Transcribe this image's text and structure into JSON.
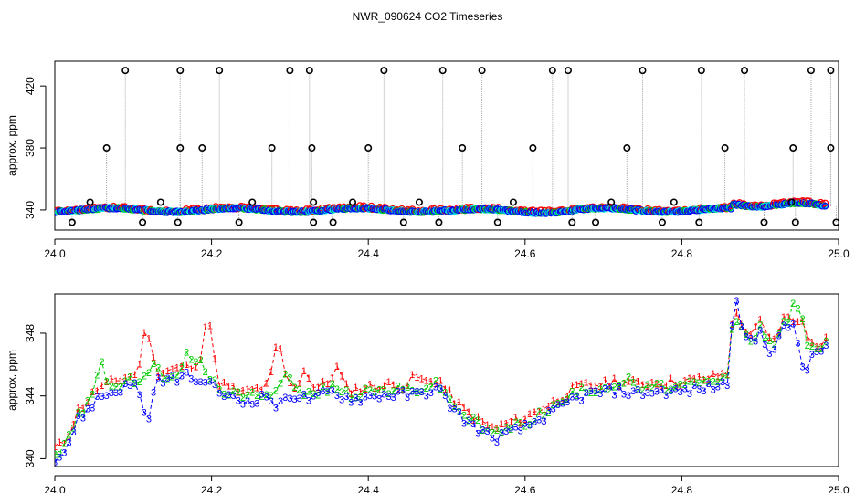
{
  "title": "NWR_090624  CO2 Timeseries",
  "colors": {
    "ch1": "#ff0000",
    "ch2": "#00cc00",
    "ch3": "#0000ff",
    "circle": "#000000",
    "cyan": "#00e5e5",
    "line": "#aaaaaa"
  },
  "chart_data": [
    {
      "type": "scatter",
      "ylabel": "approx. ppm",
      "xlim": [
        24.0,
        25.0
      ],
      "ylim": [
        327,
        436
      ],
      "xticks": [
        24.0,
        24.2,
        24.4,
        24.6,
        24.8,
        25.0
      ],
      "xtick_labels": [
        "24.0",
        "24.2",
        "24.4",
        "24.6",
        "24.8",
        "25.0"
      ],
      "yticks": [
        340,
        380,
        420
      ],
      "ytick_labels": [
        "340",
        "380",
        "420"
      ],
      "outliers_high": [
        24.09,
        24.16,
        24.21,
        24.3,
        24.325,
        24.42,
        24.495,
        24.545,
        24.635,
        24.655,
        24.75,
        24.825,
        24.88,
        24.965,
        24.99
      ],
      "outliers_mid": [
        24.066,
        24.16,
        24.188,
        24.277,
        24.328,
        24.4,
        24.52,
        24.61,
        24.73,
        24.855,
        24.942,
        24.99
      ],
      "outliers_low": [
        24.022,
        24.112,
        24.157,
        24.235,
        24.33,
        24.355,
        24.445,
        24.49,
        24.565,
        24.66,
        24.69,
        24.775,
        24.822,
        24.905,
        24.945,
        24.997
      ],
      "outliers_small": [
        24.045,
        24.135,
        24.252,
        24.33,
        24.38,
        24.465,
        24.585,
        24.71,
        24.79,
        24.94
      ]
    },
    {
      "type": "line",
      "ylabel": "approx. ppm",
      "xlim": [
        24.0,
        25.0
      ],
      "ylim": [
        339.5,
        350.5
      ],
      "xticks": [
        24.0,
        24.2,
        24.4,
        24.6,
        24.8,
        25.0
      ],
      "xtick_labels": [
        "24.0",
        "24.2",
        "24.4",
        "24.6",
        "24.8",
        "25.0"
      ],
      "yticks": [
        340,
        344,
        348
      ],
      "ytick_labels": [
        "340",
        "344",
        "348"
      ],
      "series": [
        {
          "name": "1",
          "offset": 0.3,
          "bumps": [
            [
              24.117,
              348.7
            ],
            [
              24.195,
              349.7
            ],
            [
              24.285,
              347.7
            ],
            [
              24.32,
              345.8
            ],
            [
              24.36,
              345.8
            ],
            [
              24.46,
              345.3
            ],
            [
              24.7,
              344.7
            ],
            [
              24.945,
              348.8
            ]
          ]
        },
        {
          "name": "2",
          "offset": 0.0,
          "bumps": [
            [
              24.058,
              346.5
            ],
            [
              24.125,
              345.9
            ],
            [
              24.168,
              346.6
            ],
            [
              24.185,
              346.6
            ],
            [
              24.295,
              345.8
            ],
            [
              24.73,
              345.1
            ],
            [
              24.945,
              350.0
            ]
          ]
        },
        {
          "name": "3",
          "offset": -0.3,
          "bumps": [
            [
              24.118,
              342.0
            ],
            [
              24.285,
              343.2
            ],
            [
              24.86,
              344.8
            ],
            [
              24.87,
              349.8
            ],
            [
              24.955,
              345.2
            ]
          ]
        }
      ],
      "baseline": [
        [
          24.0,
          340.4
        ],
        [
          24.01,
          340.6
        ],
        [
          24.02,
          341.6
        ],
        [
          24.03,
          342.8
        ],
        [
          24.04,
          343.3
        ],
        [
          24.055,
          344.2
        ],
        [
          24.07,
          344.5
        ],
        [
          24.09,
          344.9
        ],
        [
          24.11,
          345.1
        ],
        [
          24.14,
          345.3
        ],
        [
          24.17,
          345.6
        ],
        [
          24.2,
          344.9
        ],
        [
          24.22,
          344.3
        ],
        [
          24.24,
          343.9
        ],
        [
          24.27,
          344.3
        ],
        [
          24.3,
          344.4
        ],
        [
          24.33,
          344.1
        ],
        [
          24.35,
          344.6
        ],
        [
          24.38,
          344.1
        ],
        [
          24.42,
          344.4
        ],
        [
          24.46,
          344.4
        ],
        [
          24.49,
          344.8
        ],
        [
          24.5,
          344.0
        ],
        [
          24.52,
          342.9
        ],
        [
          24.54,
          342.2
        ],
        [
          24.56,
          341.6
        ],
        [
          24.58,
          342.0
        ],
        [
          24.6,
          342.3
        ],
        [
          24.62,
          342.9
        ],
        [
          24.64,
          343.4
        ],
        [
          24.66,
          344.1
        ],
        [
          24.68,
          344.4
        ],
        [
          24.71,
          344.7
        ],
        [
          24.74,
          344.5
        ],
        [
          24.77,
          344.6
        ],
        [
          24.8,
          344.6
        ],
        [
          24.84,
          344.9
        ],
        [
          24.86,
          345.2
        ],
        [
          24.865,
          349.3
        ],
        [
          24.875,
          348.3
        ],
        [
          24.89,
          347.6
        ],
        [
          24.9,
          348.4
        ],
        [
          24.915,
          347.0
        ],
        [
          24.93,
          348.6
        ],
        [
          24.95,
          349.1
        ],
        [
          24.96,
          347.5
        ],
        [
          24.975,
          347.0
        ],
        [
          24.985,
          347.4
        ]
      ]
    }
  ]
}
